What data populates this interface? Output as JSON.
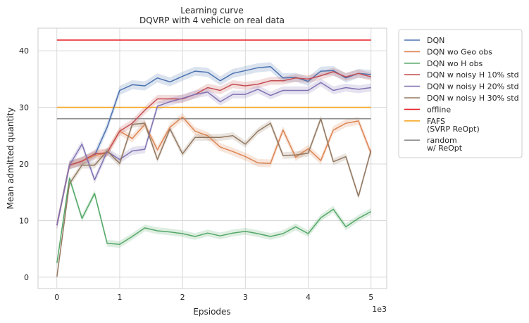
{
  "chart_data": {
    "type": "line",
    "title": "Learning curve",
    "subtitle": "DQVRP with 4 vehicle on real data",
    "xlabel": "Epsiodes",
    "ylabel": "Mean admitted quantity",
    "x_offset_label": "1e3",
    "xlim": [
      -300,
      5250
    ],
    "ylim": [
      -2,
      44
    ],
    "x_ticks": [
      0,
      1000,
      2000,
      3000,
      4000,
      5000
    ],
    "x_tick_labels": [
      "0",
      "1",
      "2",
      "3",
      "4",
      "5"
    ],
    "y_ticks": [
      0,
      10,
      20,
      30,
      40
    ],
    "y_tick_labels": [
      "0",
      "10",
      "20",
      "30",
      "40"
    ],
    "grid": true,
    "legend_position": "outside-right",
    "x": [
      0,
      200,
      400,
      600,
      800,
      1000,
      1200,
      1400,
      1600,
      1800,
      2000,
      2200,
      2400,
      2600,
      2800,
      3000,
      3200,
      3400,
      3600,
      3800,
      4000,
      4200,
      4400,
      4600,
      4800,
      5000
    ],
    "series": [
      {
        "name": "DQN",
        "color": "#4c72b0",
        "band": 0.8,
        "values": [
          9.2,
          19.8,
          20.5,
          21.5,
          26.5,
          33.0,
          34.0,
          33.8,
          35.2,
          34.5,
          35.5,
          36.4,
          36.2,
          34.7,
          36.0,
          36.5,
          37.0,
          37.2,
          35.2,
          35.3,
          34.6,
          36.4,
          36.5,
          35.2,
          36.0,
          35.8
        ]
      },
      {
        "name": "DQN wo Geo obs",
        "color": "#dd8452",
        "band": 0.7,
        "values": [
          9.2,
          19.8,
          20.5,
          21.5,
          22.0,
          25.8,
          24.5,
          27.0,
          22.5,
          26.5,
          28.3,
          25.8,
          25.0,
          23.0,
          22.2,
          21.3,
          20.2,
          20.1,
          26.0,
          21.2,
          22.7,
          20.6,
          26.0,
          27.2,
          27.6,
          21.9
        ]
      },
      {
        "name": "DQN wo H obs",
        "color": "#55a868",
        "band": 0.6,
        "values": [
          2.5,
          17.5,
          10.4,
          14.8,
          6.0,
          5.8,
          7.2,
          8.7,
          8.2,
          8.0,
          7.7,
          7.2,
          7.8,
          7.3,
          7.8,
          8.1,
          7.7,
          7.2,
          7.7,
          8.9,
          7.7,
          10.5,
          12.0,
          8.9,
          10.4,
          11.6
        ]
      },
      {
        "name": "DQN w noisy H 10% std",
        "color": "#c44e52",
        "band": 0.7,
        "values": [
          9.2,
          19.8,
          20.5,
          21.8,
          22.0,
          25.8,
          27.2,
          29.5,
          31.5,
          31.5,
          31.5,
          32.3,
          33.5,
          33.0,
          34.1,
          33.8,
          34.1,
          34.7,
          34.7,
          35.2,
          35.0,
          35.6,
          36.3,
          35.4,
          36.0,
          35.4
        ]
      },
      {
        "name": "DQN w noisy H 20% std",
        "color": "#8172b3",
        "band": 0.7,
        "values": [
          9.2,
          19.8,
          23.5,
          17.2,
          22.2,
          20.8,
          22.3,
          22.6,
          30.2,
          31.0,
          31.6,
          32.3,
          32.7,
          31.0,
          32.3,
          32.3,
          33.2,
          32.1,
          33.0,
          33.0,
          33.0,
          34.4,
          33.0,
          33.5,
          33.2,
          33.5
        ]
      },
      {
        "name": "DQN w noisy H 30% std",
        "color": "#937860",
        "band": 0.6,
        "values": [
          0.1,
          16.5,
          19.8,
          19.8,
          22.3,
          20.1,
          27.0,
          27.2,
          20.8,
          26.2,
          21.8,
          24.7,
          24.7,
          24.7,
          25.0,
          23.5,
          25.8,
          27.2,
          21.5,
          21.6,
          21.9,
          28.0,
          20.4,
          21.3,
          14.3,
          22.4
        ]
      }
    ],
    "reference_lines": [
      {
        "name": "offline",
        "color": "#e8262b",
        "y": 41.9,
        "x_range": [
          0,
          5000
        ]
      },
      {
        "name": "FAFS\n(SVRP ReOpt)",
        "color": "#f5a623",
        "y": 30.0,
        "x_range": [
          0,
          5000
        ]
      },
      {
        "name": "random\nw/ ReOpt",
        "color": "#8c8c8c",
        "y": 28.0,
        "x_range": [
          0,
          5000
        ]
      }
    ]
  }
}
